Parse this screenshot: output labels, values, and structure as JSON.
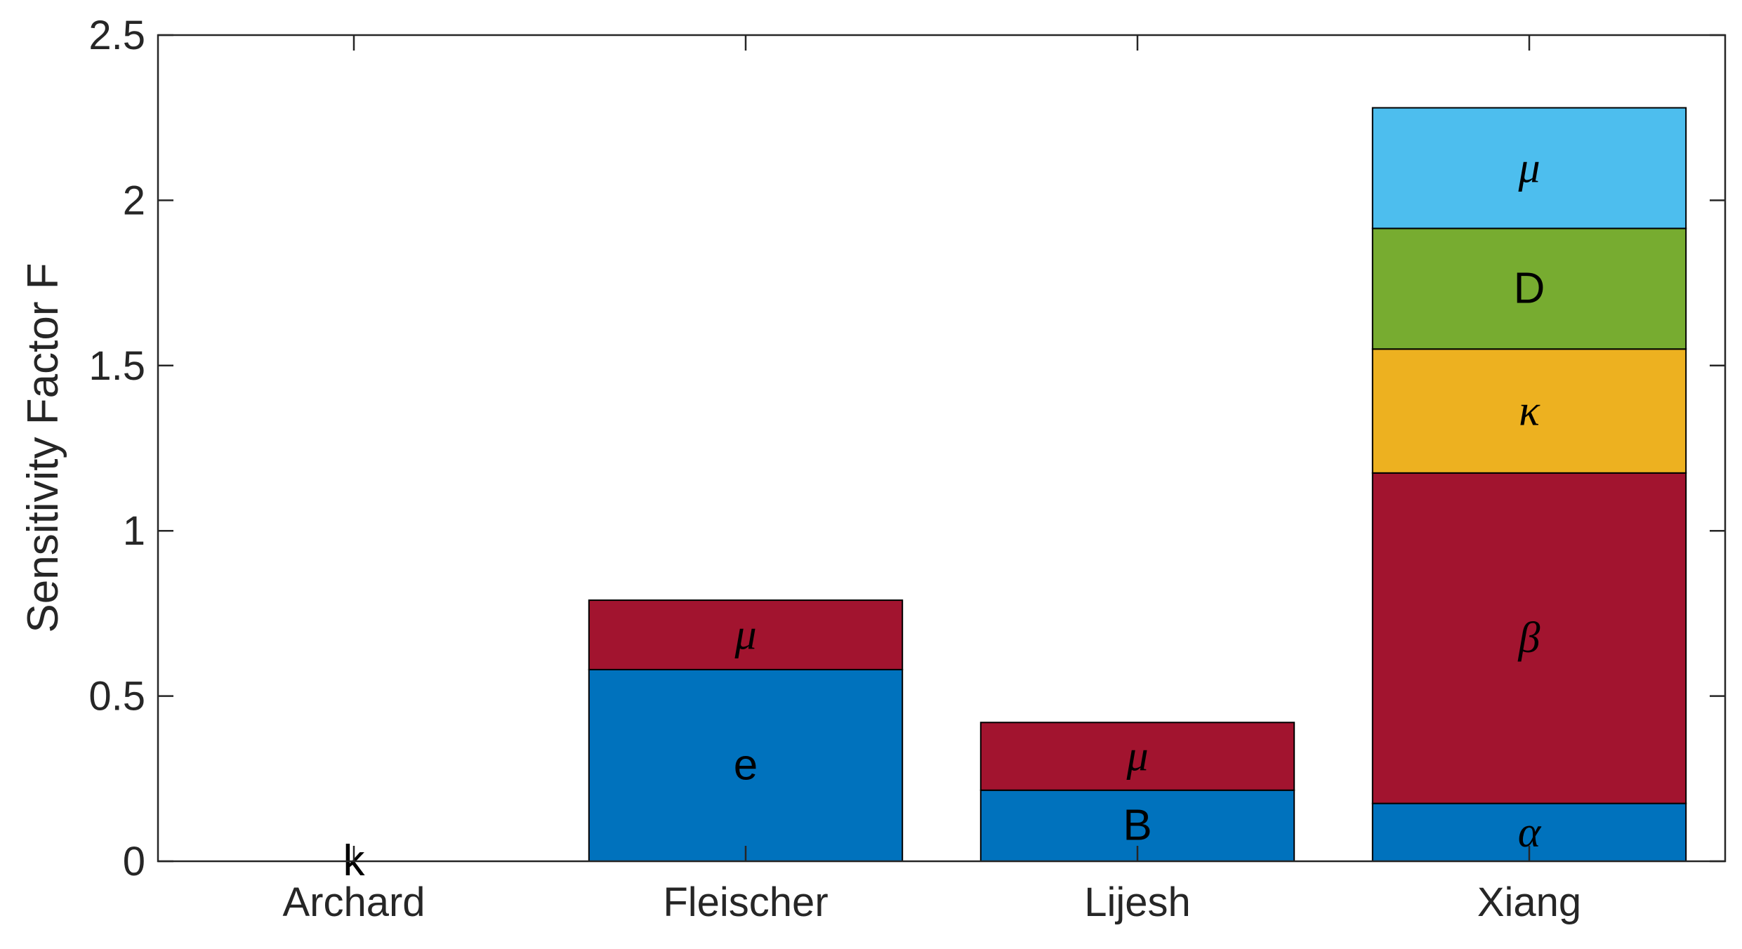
{
  "chart_data": {
    "type": "bar",
    "stacked": true,
    "ylabel": "Sensitivity Factor F",
    "xlabel": "",
    "ylim": [
      0,
      2.5
    ],
    "yticks": [
      0,
      0.5,
      1,
      1.5,
      2,
      2.5
    ],
    "ytick_labels": [
      "0",
      "0.5",
      "1",
      "1.5",
      "2",
      "2.5"
    ],
    "categories": [
      "Archard",
      "Fleischer",
      "Lijesh",
      "Xiang"
    ],
    "grid": false,
    "legend": "none",
    "bars": [
      {
        "category": "Archard",
        "segments": [
          {
            "label": "k",
            "value": 0.0,
            "color": "#0072BD",
            "font": "sans"
          }
        ]
      },
      {
        "category": "Fleischer",
        "segments": [
          {
            "label": "e",
            "value": 0.58,
            "color": "#0072BD",
            "font": "sans"
          },
          {
            "label": "μ",
            "value": 0.21,
            "color": "#A2142F",
            "font": "greek"
          }
        ]
      },
      {
        "category": "Lijesh",
        "segments": [
          {
            "label": "B",
            "value": 0.215,
            "color": "#0072BD",
            "font": "sans"
          },
          {
            "label": "μ",
            "value": 0.205,
            "color": "#A2142F",
            "font": "greek"
          }
        ]
      },
      {
        "category": "Xiang",
        "segments": [
          {
            "label": "α",
            "value": 0.175,
            "color": "#0072BD",
            "font": "greek"
          },
          {
            "label": "β",
            "value": 1.0,
            "color": "#A2142F",
            "font": "greek"
          },
          {
            "label": "κ",
            "value": 0.375,
            "color": "#EDB120",
            "font": "greek"
          },
          {
            "label": "D",
            "value": 0.365,
            "color": "#77AC30",
            "font": "sans"
          },
          {
            "label": "μ",
            "value": 0.365,
            "color": "#4DBEEE",
            "font": "greek"
          }
        ]
      }
    ]
  }
}
